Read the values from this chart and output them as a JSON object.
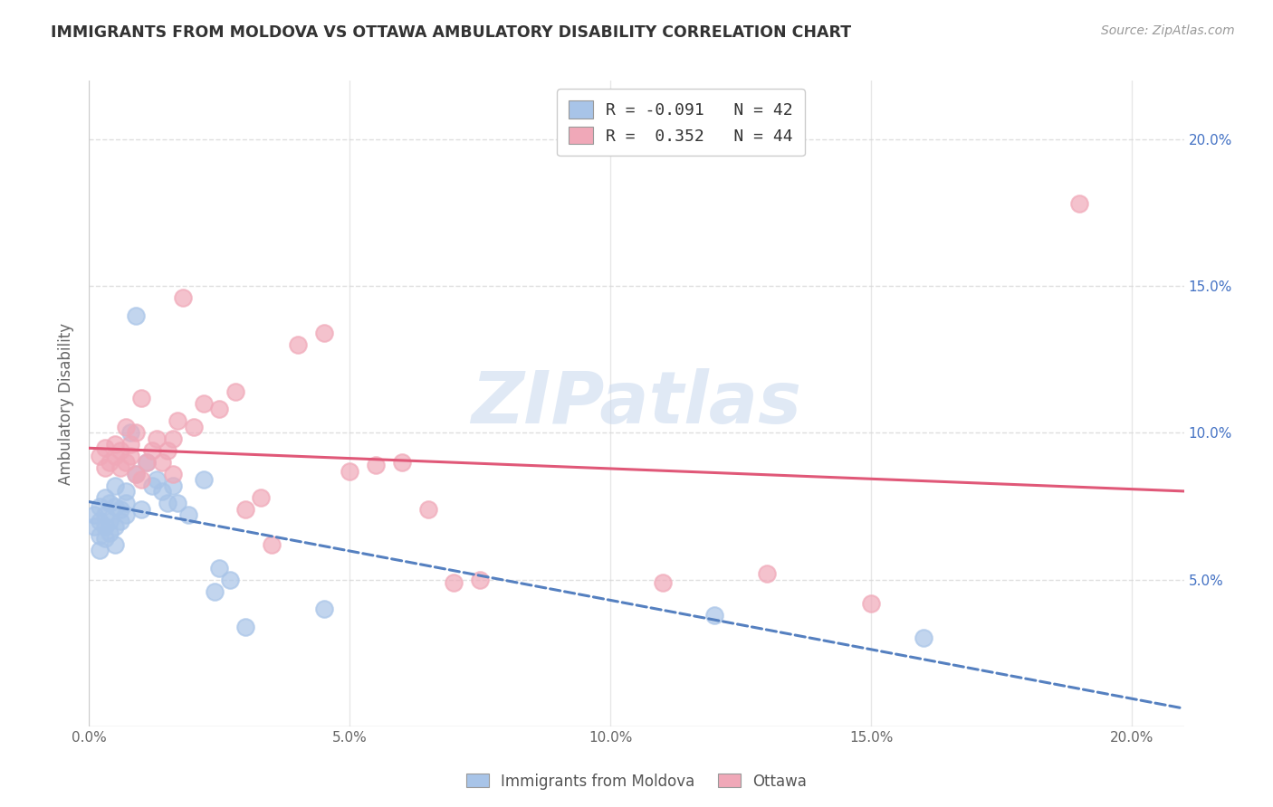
{
  "title": "IMMIGRANTS FROM MOLDOVA VS OTTAWA AMBULATORY DISABILITY CORRELATION CHART",
  "source": "Source: ZipAtlas.com",
  "ylabel": "Ambulatory Disability",
  "legend_1_label": "Immigrants from Moldova",
  "legend_1_R": "-0.091",
  "legend_1_N": "42",
  "legend_2_label": "Ottawa",
  "legend_2_R": "0.352",
  "legend_2_N": "44",
  "blue_color": "#a8c4e8",
  "pink_color": "#f0a8b8",
  "blue_line_color": "#5580c0",
  "pink_line_color": "#e05878",
  "watermark": "ZIPatlas",
  "blue_scatter": [
    [
      0.001,
      0.072
    ],
    [
      0.001,
      0.068
    ],
    [
      0.002,
      0.075
    ],
    [
      0.002,
      0.07
    ],
    [
      0.002,
      0.065
    ],
    [
      0.002,
      0.06
    ],
    [
      0.003,
      0.078
    ],
    [
      0.003,
      0.072
    ],
    [
      0.003,
      0.068
    ],
    [
      0.003,
      0.064
    ],
    [
      0.004,
      0.076
    ],
    [
      0.004,
      0.07
    ],
    [
      0.004,
      0.066
    ],
    [
      0.005,
      0.082
    ],
    [
      0.005,
      0.075
    ],
    [
      0.005,
      0.068
    ],
    [
      0.005,
      0.062
    ],
    [
      0.006,
      0.074
    ],
    [
      0.006,
      0.07
    ],
    [
      0.007,
      0.08
    ],
    [
      0.007,
      0.076
    ],
    [
      0.007,
      0.072
    ],
    [
      0.008,
      0.1
    ],
    [
      0.009,
      0.14
    ],
    [
      0.009,
      0.086
    ],
    [
      0.01,
      0.074
    ],
    [
      0.011,
      0.09
    ],
    [
      0.012,
      0.082
    ],
    [
      0.013,
      0.084
    ],
    [
      0.014,
      0.08
    ],
    [
      0.015,
      0.076
    ],
    [
      0.016,
      0.082
    ],
    [
      0.017,
      0.076
    ],
    [
      0.019,
      0.072
    ],
    [
      0.022,
      0.084
    ],
    [
      0.024,
      0.046
    ],
    [
      0.025,
      0.054
    ],
    [
      0.027,
      0.05
    ],
    [
      0.03,
      0.034
    ],
    [
      0.045,
      0.04
    ],
    [
      0.12,
      0.038
    ],
    [
      0.16,
      0.03
    ]
  ],
  "pink_scatter": [
    [
      0.002,
      0.092
    ],
    [
      0.003,
      0.095
    ],
    [
      0.003,
      0.088
    ],
    [
      0.004,
      0.09
    ],
    [
      0.005,
      0.096
    ],
    [
      0.005,
      0.092
    ],
    [
      0.006,
      0.094
    ],
    [
      0.006,
      0.088
    ],
    [
      0.007,
      0.09
    ],
    [
      0.007,
      0.102
    ],
    [
      0.008,
      0.096
    ],
    [
      0.008,
      0.092
    ],
    [
      0.009,
      0.1
    ],
    [
      0.009,
      0.086
    ],
    [
      0.01,
      0.084
    ],
    [
      0.01,
      0.112
    ],
    [
      0.011,
      0.09
    ],
    [
      0.012,
      0.094
    ],
    [
      0.013,
      0.098
    ],
    [
      0.014,
      0.09
    ],
    [
      0.015,
      0.094
    ],
    [
      0.016,
      0.098
    ],
    [
      0.016,
      0.086
    ],
    [
      0.017,
      0.104
    ],
    [
      0.018,
      0.146
    ],
    [
      0.02,
      0.102
    ],
    [
      0.022,
      0.11
    ],
    [
      0.025,
      0.108
    ],
    [
      0.028,
      0.114
    ],
    [
      0.03,
      0.074
    ],
    [
      0.033,
      0.078
    ],
    [
      0.035,
      0.062
    ],
    [
      0.04,
      0.13
    ],
    [
      0.045,
      0.134
    ],
    [
      0.05,
      0.087
    ],
    [
      0.055,
      0.089
    ],
    [
      0.06,
      0.09
    ],
    [
      0.065,
      0.074
    ],
    [
      0.07,
      0.049
    ],
    [
      0.075,
      0.05
    ],
    [
      0.11,
      0.049
    ],
    [
      0.13,
      0.052
    ],
    [
      0.15,
      0.042
    ],
    [
      0.19,
      0.178
    ]
  ],
  "xlim": [
    0.0,
    0.21
  ],
  "ylim": [
    0.0,
    0.22
  ],
  "xticks": [
    0.0,
    0.05,
    0.1,
    0.15,
    0.2
  ],
  "xtick_labels": [
    "0.0%",
    "5.0%",
    "10.0%",
    "15.0%",
    "20.0%"
  ],
  "yticks_right": [
    0.05,
    0.1,
    0.15,
    0.2
  ],
  "ytick_right_labels": [
    "5.0%",
    "10.0%",
    "15.0%",
    "20.0%"
  ],
  "grid_color": "#d8d8d8",
  "background_color": "#ffffff"
}
